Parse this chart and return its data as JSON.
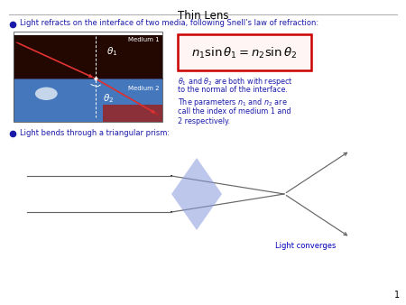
{
  "title": "Thin Lens",
  "bullet1": "Light refracts on the interface of two media, following Snell’s law of refraction:",
  "bullet2": "Light bends through a triangular prism:",
  "snell_formula": "$n_1\\sin\\theta_1 = n_2\\sin\\theta_2$",
  "light_converges": "Light converges",
  "title_color": "#000000",
  "bullet_color": "#1a1aaa",
  "text_color": "#1a1aaa",
  "formula_box_color": "#cc0000",
  "prism_color": "#8899dd",
  "prism_alpha": 0.55,
  "line_color": "#666666",
  "background_color": "#ffffff",
  "page_num": "1",
  "img_top_color": "#4477bb",
  "img_bot_color": "#220800",
  "medium1_label": "Medium 1",
  "medium2_label": "Medium 2"
}
